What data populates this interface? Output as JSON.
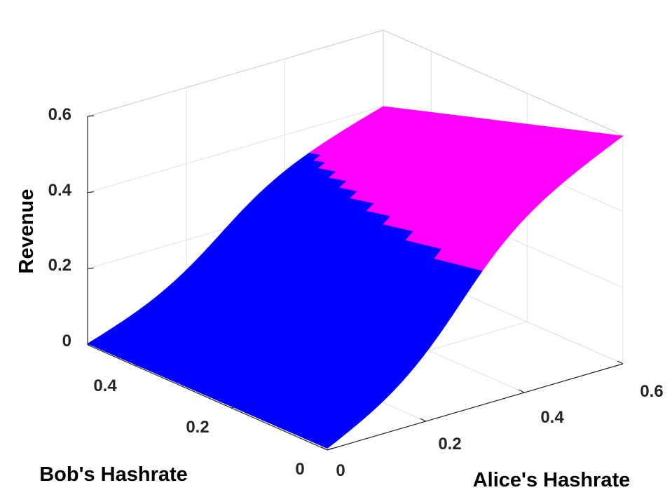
{
  "chart_data": {
    "type": "surface3d",
    "title": "",
    "xlabel": "Alice's Hashrate",
    "ylabel": "Bob's Hashrate",
    "zlabel": "Revenue",
    "xlim": [
      0,
      0.6
    ],
    "ylim": [
      0,
      0.5
    ],
    "zlim": [
      0,
      0.6
    ],
    "xticks": [
      "0",
      "0.2",
      "0.4",
      "0.6"
    ],
    "yticks": [
      "0",
      "0.2",
      "0.4"
    ],
    "zticks": [
      "0",
      "0.2",
      "0.4",
      "0.6"
    ],
    "grid": true,
    "surface": {
      "x_domain": [
        0,
        0.6
      ],
      "y_domain": [
        0,
        0.5
      ],
      "z_min": 0,
      "z_max": 0.6,
      "corner_values": [
        {
          "x": 0,
          "y": 0,
          "z": 0
        },
        {
          "x": 0.6,
          "y": 0,
          "z": 0.6
        },
        {
          "x": 0,
          "y": 0.5,
          "z": 0
        },
        {
          "x": 0.6,
          "y": 0.5,
          "z": 0.4
        }
      ],
      "regions": [
        {
          "name": "",
          "color": "#0000ff"
        },
        {
          "name": "",
          "color": "#ff00ff",
          "z_above": 0.34
        }
      ]
    }
  }
}
